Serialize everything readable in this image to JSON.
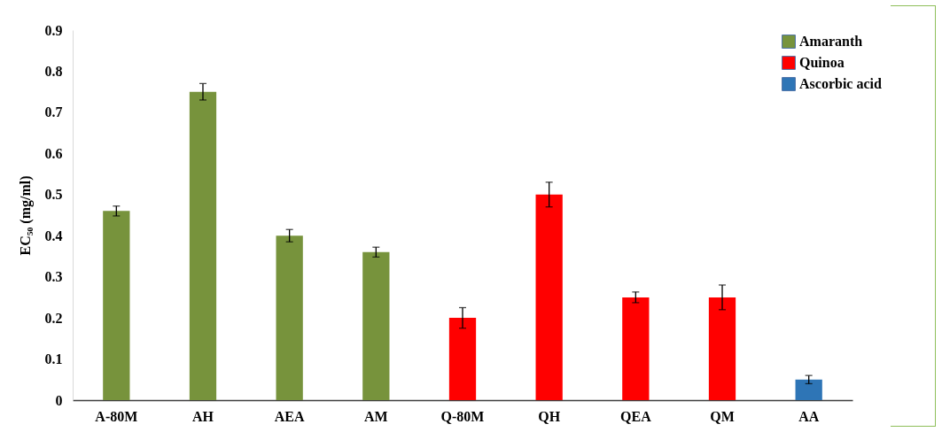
{
  "chart_data": {
    "type": "bar",
    "ylabel": "EC₅₀ (mg/ml)",
    "categories": [
      "A-80M",
      "AH",
      "AEA",
      "AM",
      "Q-80M",
      "QH",
      "QEA",
      "QM",
      "AA"
    ],
    "series": [
      {
        "name": "Amaranth",
        "color": "#77933c",
        "values": [
          0.46,
          0.75,
          0.4,
          0.36,
          null,
          null,
          null,
          null,
          null
        ],
        "errors": [
          0.012,
          0.02,
          0.015,
          0.012,
          null,
          null,
          null,
          null,
          null
        ]
      },
      {
        "name": "Quinoa",
        "color": "#ff0000",
        "values": [
          null,
          null,
          null,
          null,
          0.2,
          0.5,
          0.25,
          0.25,
          null
        ],
        "errors": [
          null,
          null,
          null,
          null,
          0.025,
          0.03,
          0.013,
          0.03,
          null
        ]
      },
      {
        "name": "Ascorbic acid",
        "color": "#2e75b6",
        "values": [
          null,
          null,
          null,
          null,
          null,
          null,
          null,
          null,
          0.05
        ],
        "errors": [
          null,
          null,
          null,
          null,
          null,
          null,
          null,
          null,
          0.01
        ]
      }
    ],
    "ylim": [
      0,
      0.9
    ],
    "yticks": [
      0,
      0.1,
      0.2,
      0.3,
      0.4,
      0.5,
      0.6,
      0.7,
      0.8,
      0.9
    ],
    "grid": false,
    "legend": "top right"
  }
}
